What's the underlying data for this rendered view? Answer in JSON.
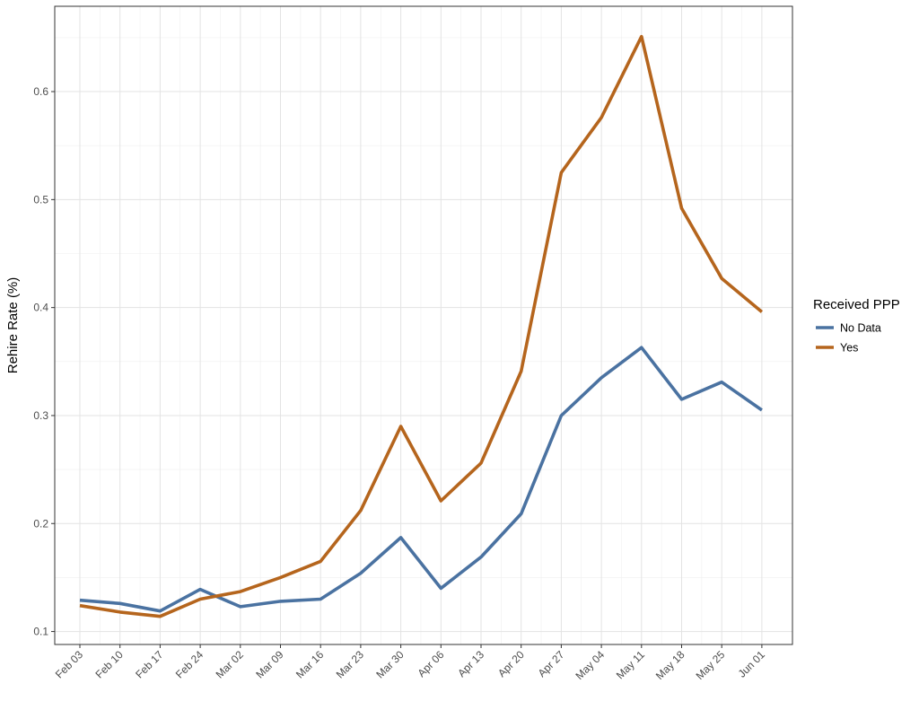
{
  "chart_data": {
    "type": "line",
    "title": "",
    "xlabel": "",
    "ylabel": "Rehire Rate (%)",
    "categories": [
      "Feb 03",
      "Feb 10",
      "Feb 17",
      "Feb 24",
      "Mar 02",
      "Mar 09",
      "Mar 16",
      "Mar 23",
      "Mar 30",
      "Apr 06",
      "Apr 13",
      "Apr 20",
      "Apr 27",
      "May 04",
      "May 11",
      "May 18",
      "May 25",
      "Jun 01"
    ],
    "y_ticks": [
      0.1,
      0.2,
      0.3,
      0.4,
      0.5,
      0.6
    ],
    "ylim": [
      0.088,
      0.679
    ],
    "grid": true,
    "legend": {
      "title": "Received PPP",
      "placement": "right"
    },
    "series": [
      {
        "name": "No Data",
        "color": "#4a72a1",
        "values": [
          0.129,
          0.126,
          0.119,
          0.139,
          0.123,
          0.128,
          0.13,
          0.154,
          0.187,
          0.14,
          0.169,
          0.209,
          0.3,
          0.335,
          0.363,
          0.315,
          0.331,
          0.305
        ]
      },
      {
        "name": "Yes",
        "color": "#b5651d",
        "values": [
          0.124,
          0.118,
          0.114,
          0.13,
          0.137,
          0.15,
          0.165,
          0.212,
          0.29,
          0.221,
          0.256,
          0.341,
          0.525,
          0.576,
          0.651,
          0.492,
          0.427,
          0.396
        ]
      }
    ]
  }
}
